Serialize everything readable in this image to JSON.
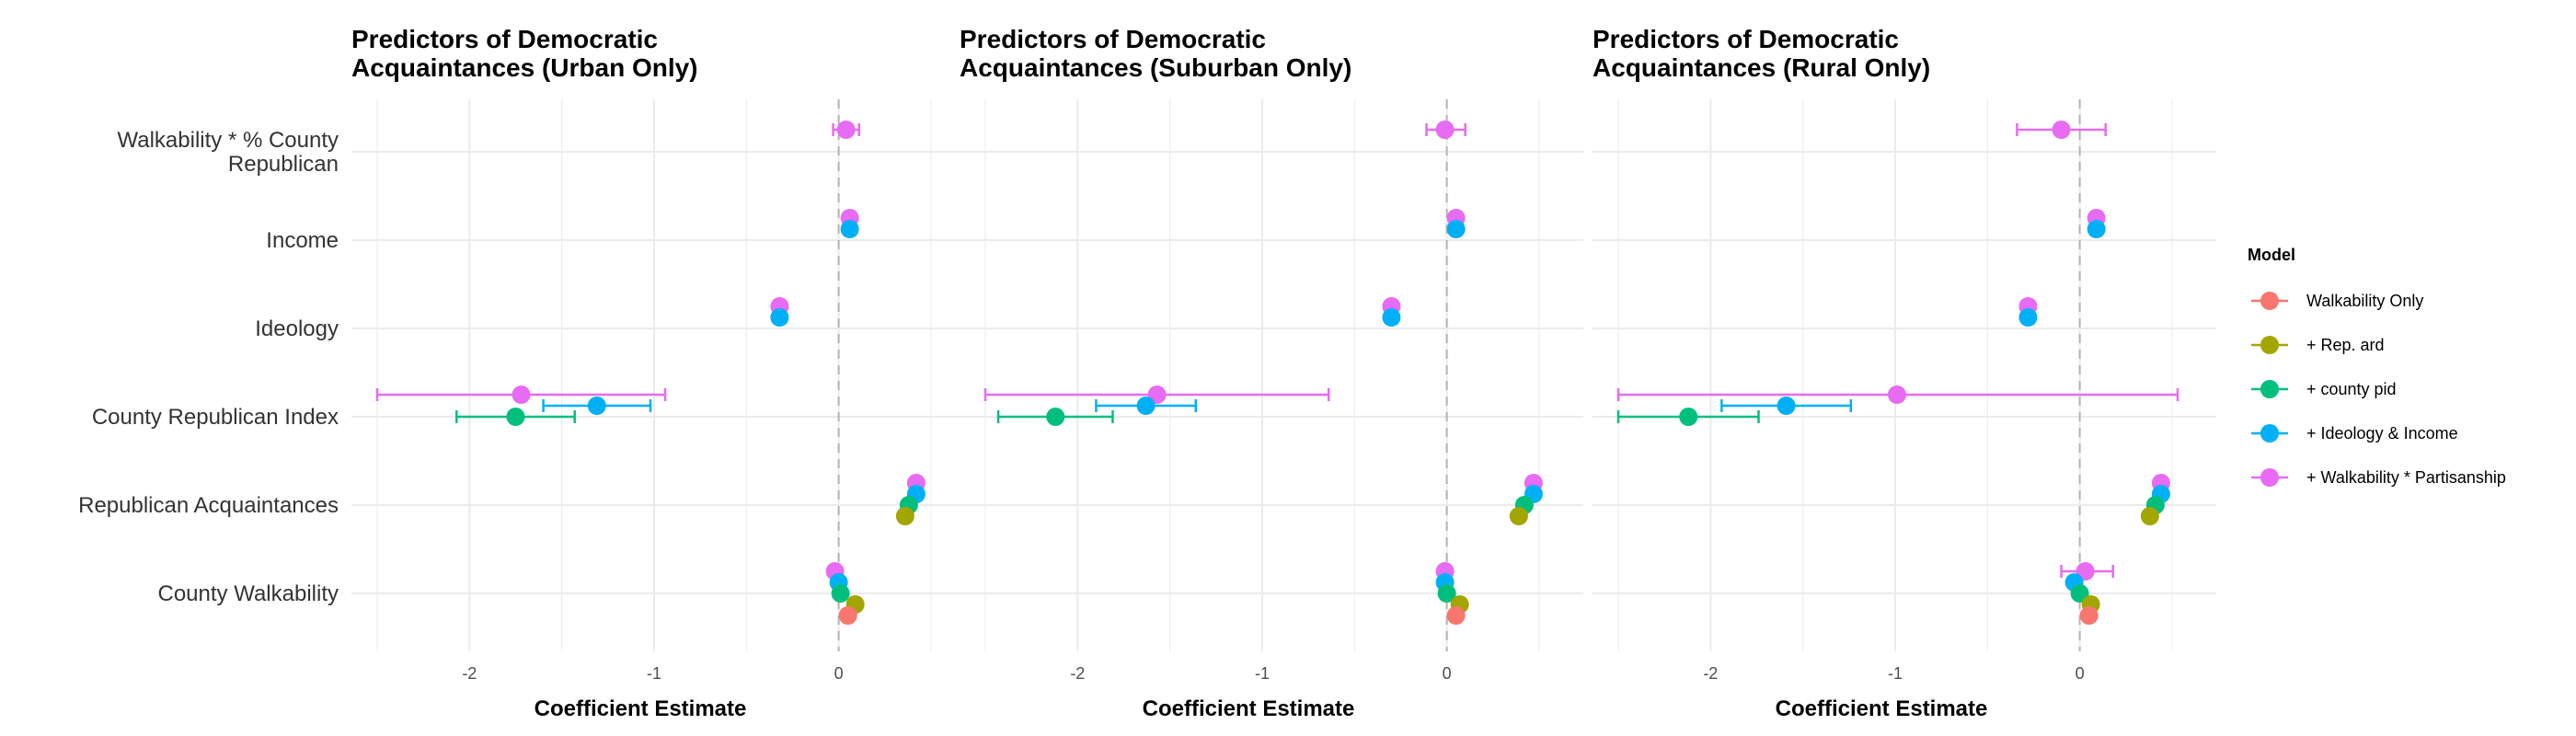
{
  "chart_data": {
    "type": "scatter",
    "subtype": "coefficient-plot",
    "xlabel": "Coefficient Estimate",
    "categories": [
      "Walkability * % County\nRepublican",
      "Income",
      "Ideology",
      "County Republican Index",
      "Republican Acquaintances",
      "County Walkability"
    ],
    "legend": {
      "title": "Model",
      "placement": "right",
      "entries": [
        {
          "name": "Walkability Only",
          "color": "#F8766D"
        },
        {
          "name": "+ Rep. ard",
          "color": "#A3A500"
        },
        {
          "name": "+ county pid",
          "color": "#00BF7D"
        },
        {
          "name": "+ Ideology & Income",
          "color": "#00B0F6"
        },
        {
          "name": "+ Walkability * Partisanship",
          "color": "#E76BF3"
        }
      ]
    },
    "grid": true,
    "reference_line_x": 0,
    "panels": [
      {
        "title": "Predictors of Democratic\nAcquaintances (Urban Only)",
        "xlim": [
          -2.5,
          0.6
        ],
        "xticks": [
          -2,
          -1,
          0
        ],
        "points": [
          {
            "model": "+ Walkability * Partisanship",
            "term": "Walkability * % County\nRepublican",
            "estimate": 0.04,
            "ci": [
              -0.03,
              0.11
            ]
          },
          {
            "model": "+ Walkability * Partisanship",
            "term": "Income",
            "estimate": 0.06
          },
          {
            "model": "+ Ideology & Income",
            "term": "Income",
            "estimate": 0.06
          },
          {
            "model": "+ Walkability * Partisanship",
            "term": "Ideology",
            "estimate": -0.32
          },
          {
            "model": "+ Ideology & Income",
            "term": "Ideology",
            "estimate": -0.32
          },
          {
            "model": "+ Walkability * Partisanship",
            "term": "County Republican Index",
            "estimate": -1.72,
            "ci": [
              -2.5,
              -0.94
            ]
          },
          {
            "model": "+ Ideology & Income",
            "term": "County Republican Index",
            "estimate": -1.31,
            "ci": [
              -1.6,
              -1.02
            ]
          },
          {
            "model": "+ county pid",
            "term": "County Republican Index",
            "estimate": -1.75,
            "ci": [
              -2.07,
              -1.43
            ]
          },
          {
            "model": "+ Walkability * Partisanship",
            "term": "Republican Acquaintances",
            "estimate": 0.42
          },
          {
            "model": "+ Ideology & Income",
            "term": "Republican Acquaintances",
            "estimate": 0.42
          },
          {
            "model": "+ county pid",
            "term": "Republican Acquaintances",
            "estimate": 0.38
          },
          {
            "model": "+ Rep. ard",
            "term": "Republican Acquaintances",
            "estimate": 0.36
          },
          {
            "model": "+ Walkability * Partisanship",
            "term": "County Walkability",
            "estimate": -0.02
          },
          {
            "model": "+ Ideology & Income",
            "term": "County Walkability",
            "estimate": 0.0
          },
          {
            "model": "+ county pid",
            "term": "County Walkability",
            "estimate": 0.01
          },
          {
            "model": "+ Rep. ard",
            "term": "County Walkability",
            "estimate": 0.09
          },
          {
            "model": "Walkability Only",
            "term": "County Walkability",
            "estimate": 0.05
          }
        ]
      },
      {
        "title": "Predictors of Democratic\nAcquaintances (Suburban Only)",
        "xlim": [
          -2.5,
          0.6
        ],
        "xticks": [
          -2,
          -1,
          0
        ],
        "points": [
          {
            "model": "+ Walkability * Partisanship",
            "term": "Walkability * % County\nRepublican",
            "estimate": -0.01,
            "ci": [
              -0.11,
              0.1
            ]
          },
          {
            "model": "+ Walkability * Partisanship",
            "term": "Income",
            "estimate": 0.05
          },
          {
            "model": "+ Ideology & Income",
            "term": "Income",
            "estimate": 0.05
          },
          {
            "model": "+ Walkability * Partisanship",
            "term": "Ideology",
            "estimate": -0.3
          },
          {
            "model": "+ Ideology & Income",
            "term": "Ideology",
            "estimate": -0.3
          },
          {
            "model": "+ Walkability * Partisanship",
            "term": "County Republican Index",
            "estimate": -1.57,
            "ci": [
              -2.5,
              -0.64
            ]
          },
          {
            "model": "+ Ideology & Income",
            "term": "County Republican Index",
            "estimate": -1.63,
            "ci": [
              -1.9,
              -1.36
            ]
          },
          {
            "model": "+ county pid",
            "term": "County Republican Index",
            "estimate": -2.12,
            "ci": [
              -2.43,
              -1.81
            ]
          },
          {
            "model": "+ Walkability * Partisanship",
            "term": "Republican Acquaintances",
            "estimate": 0.47
          },
          {
            "model": "+ Ideology & Income",
            "term": "Republican Acquaintances",
            "estimate": 0.47
          },
          {
            "model": "+ county pid",
            "term": "Republican Acquaintances",
            "estimate": 0.42
          },
          {
            "model": "+ Rep. ard",
            "term": "Republican Acquaintances",
            "estimate": 0.39
          },
          {
            "model": "+ Walkability * Partisanship",
            "term": "County Walkability",
            "estimate": -0.01
          },
          {
            "model": "+ Ideology & Income",
            "term": "County Walkability",
            "estimate": -0.01
          },
          {
            "model": "+ county pid",
            "term": "County Walkability",
            "estimate": 0.0
          },
          {
            "model": "+ Rep. ard",
            "term": "County Walkability",
            "estimate": 0.07
          },
          {
            "model": "Walkability Only",
            "term": "County Walkability",
            "estimate": 0.05
          }
        ]
      },
      {
        "title": "Predictors of Democratic\nAcquaintances (Rural Only)",
        "xlim": [
          -2.5,
          0.6
        ],
        "xticks": [
          -2,
          -1,
          0
        ],
        "points": [
          {
            "model": "+ Walkability * Partisanship",
            "term": "Walkability * % County\nRepublican",
            "estimate": -0.1,
            "ci": [
              -0.34,
              0.14
            ]
          },
          {
            "model": "+ Walkability * Partisanship",
            "term": "Income",
            "estimate": 0.09
          },
          {
            "model": "+ Ideology & Income",
            "term": "Income",
            "estimate": 0.09
          },
          {
            "model": "+ Walkability * Partisanship",
            "term": "Ideology",
            "estimate": -0.28
          },
          {
            "model": "+ Ideology & Income",
            "term": "Ideology",
            "estimate": -0.28
          },
          {
            "model": "+ Walkability * Partisanship",
            "term": "County Republican Index",
            "estimate": -0.99,
            "ci": [
              -2.5,
              0.53
            ]
          },
          {
            "model": "+ Ideology & Income",
            "term": "County Republican Index",
            "estimate": -1.59,
            "ci": [
              -1.94,
              -1.24
            ]
          },
          {
            "model": "+ county pid",
            "term": "County Republican Index",
            "estimate": -2.12,
            "ci": [
              -2.5,
              -1.74
            ]
          },
          {
            "model": "+ Walkability * Partisanship",
            "term": "Republican Acquaintances",
            "estimate": 0.44
          },
          {
            "model": "+ Ideology & Income",
            "term": "Republican Acquaintances",
            "estimate": 0.44
          },
          {
            "model": "+ county pid",
            "term": "Republican Acquaintances",
            "estimate": 0.41
          },
          {
            "model": "+ Rep. ard",
            "term": "Republican Acquaintances",
            "estimate": 0.38
          },
          {
            "model": "+ Walkability * Partisanship",
            "term": "County Walkability",
            "estimate": 0.03,
            "ci": [
              -0.1,
              0.18
            ]
          },
          {
            "model": "+ Ideology & Income",
            "term": "County Walkability",
            "estimate": -0.03
          },
          {
            "model": "+ county pid",
            "term": "County Walkability",
            "estimate": 0.0
          },
          {
            "model": "+ Rep. ard",
            "term": "County Walkability",
            "estimate": 0.06
          },
          {
            "model": "Walkability Only",
            "term": "County Walkability",
            "estimate": 0.05
          }
        ]
      }
    ]
  }
}
